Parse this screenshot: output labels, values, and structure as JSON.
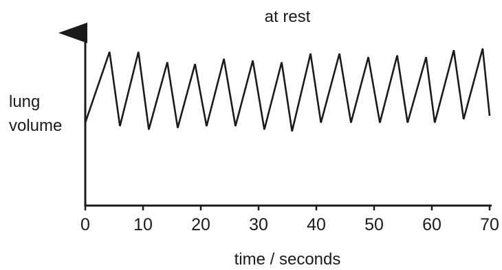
{
  "chart_data": {
    "type": "line",
    "title": "at rest",
    "ylabel_lines": [
      "lung",
      "volume"
    ],
    "xlabel": "time / seconds",
    "xlim": [
      0,
      70
    ],
    "xticks": [
      0,
      10,
      20,
      30,
      40,
      50,
      60,
      70
    ],
    "ylim": [
      0,
      10
    ],
    "y_ticks_shown": false,
    "grid": false,
    "colors": {
      "line": "#1a1a1a",
      "axes": "#1a1a1a"
    },
    "series": [
      {
        "points": [
          [
            0,
            4.8
          ],
          [
            4.2,
            8.9
          ],
          [
            6.0,
            4.6
          ],
          [
            9.2,
            8.9
          ],
          [
            11.0,
            4.4
          ],
          [
            14.2,
            8.3
          ],
          [
            16.0,
            4.5
          ],
          [
            19.0,
            8.2
          ],
          [
            21.0,
            4.6
          ],
          [
            24.0,
            8.5
          ],
          [
            26.0,
            4.6
          ],
          [
            29.0,
            8.4
          ],
          [
            31.0,
            4.4
          ],
          [
            34.0,
            8.3
          ],
          [
            35.8,
            4.3
          ],
          [
            39.0,
            8.8
          ],
          [
            40.8,
            4.8
          ],
          [
            44.0,
            8.8
          ],
          [
            46.0,
            4.8
          ],
          [
            49.0,
            8.6
          ],
          [
            51.0,
            4.8
          ],
          [
            54.0,
            8.7
          ],
          [
            55.8,
            4.8
          ],
          [
            59.0,
            8.6
          ],
          [
            60.5,
            4.8
          ],
          [
            63.8,
            9.0
          ],
          [
            65.5,
            5.0
          ],
          [
            68.8,
            9.1
          ],
          [
            70.0,
            5.2
          ]
        ]
      }
    ]
  }
}
